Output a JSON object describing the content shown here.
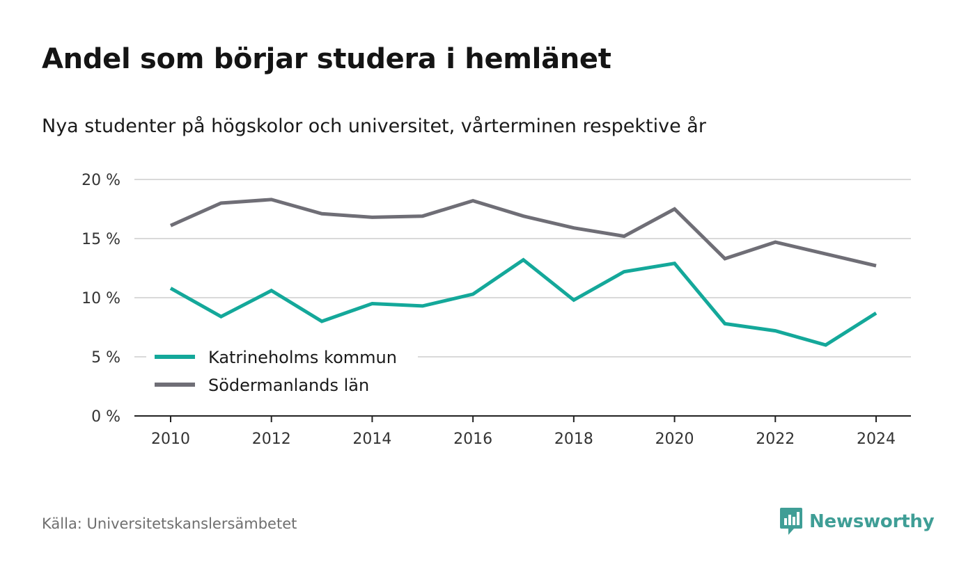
{
  "chart_data": {
    "type": "line",
    "title": "Andel som börjar studera i hemlänet",
    "subtitle": "Nya studenter på högskolor och universitet, vårterminen respektive år",
    "x": [
      2010,
      2011,
      2012,
      2013,
      2014,
      2015,
      2016,
      2017,
      2018,
      2019,
      2020,
      2021,
      2022,
      2023,
      2024
    ],
    "x_ticks": [
      2010,
      2012,
      2014,
      2016,
      2018,
      2020,
      2022,
      2024
    ],
    "y_ticks": [
      0,
      5,
      10,
      15,
      20
    ],
    "y_tick_labels": [
      "0 %",
      "5 %",
      "10 %",
      "15 %",
      "20 %"
    ],
    "ylim": [
      0,
      20
    ],
    "grid": "horizontal",
    "legend_position": "bottom-left",
    "series": [
      {
        "name": "Katrineholms kommun",
        "color": "#14a89a",
        "values": [
          10.8,
          8.4,
          10.6,
          8.0,
          9.5,
          9.3,
          10.3,
          13.2,
          9.8,
          12.2,
          12.9,
          7.8,
          7.2,
          6.0,
          8.7
        ]
      },
      {
        "name": "Södermanlands län",
        "color": "#6f6e76",
        "values": [
          16.1,
          18.0,
          18.3,
          17.1,
          16.8,
          16.9,
          18.2,
          16.9,
          15.9,
          15.2,
          17.5,
          13.3,
          14.7,
          13.7,
          12.7
        ]
      }
    ]
  },
  "source": "Källa: Universitetskanslersämbetet",
  "brand": {
    "name": "Newsworthy",
    "color": "#3f9e96",
    "icon": "newsworthy-logo-icon"
  }
}
